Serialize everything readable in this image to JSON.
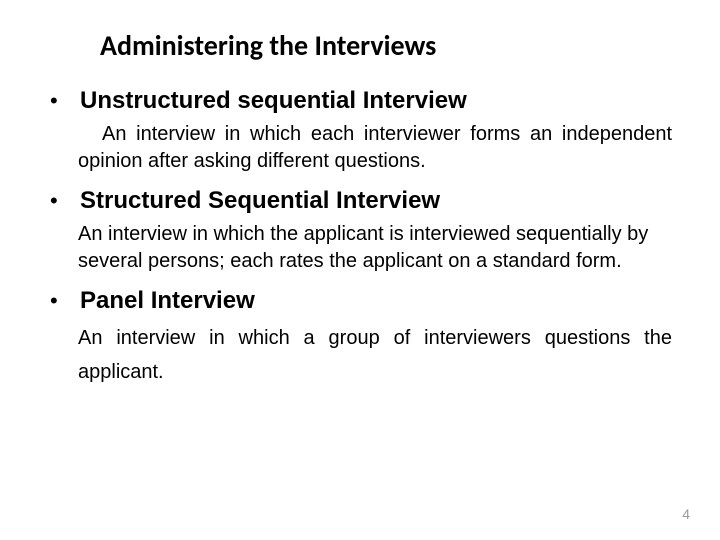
{
  "title": "Administering the Interviews",
  "items": [
    {
      "heading": "Unstructured sequential Interview",
      "desc": "An interview in which each interviewer forms an independent opinion after asking different questions.",
      "justify": true,
      "first_indent": true
    },
    {
      "heading": "Structured Sequential Interview",
      "desc": "An interview in which the applicant is interviewed sequentially by several persons; each rates the applicant on a standard form.",
      "justify": false,
      "first_indent": false
    },
    {
      "heading": "Panel Interview",
      "desc": "An interview in which a group of interviewers questions the applicant.",
      "justify": true,
      "first_indent": false
    }
  ],
  "page_number": "4",
  "colors": {
    "text": "#000000",
    "background": "#ffffff",
    "page_num": "#9a9a9a"
  }
}
